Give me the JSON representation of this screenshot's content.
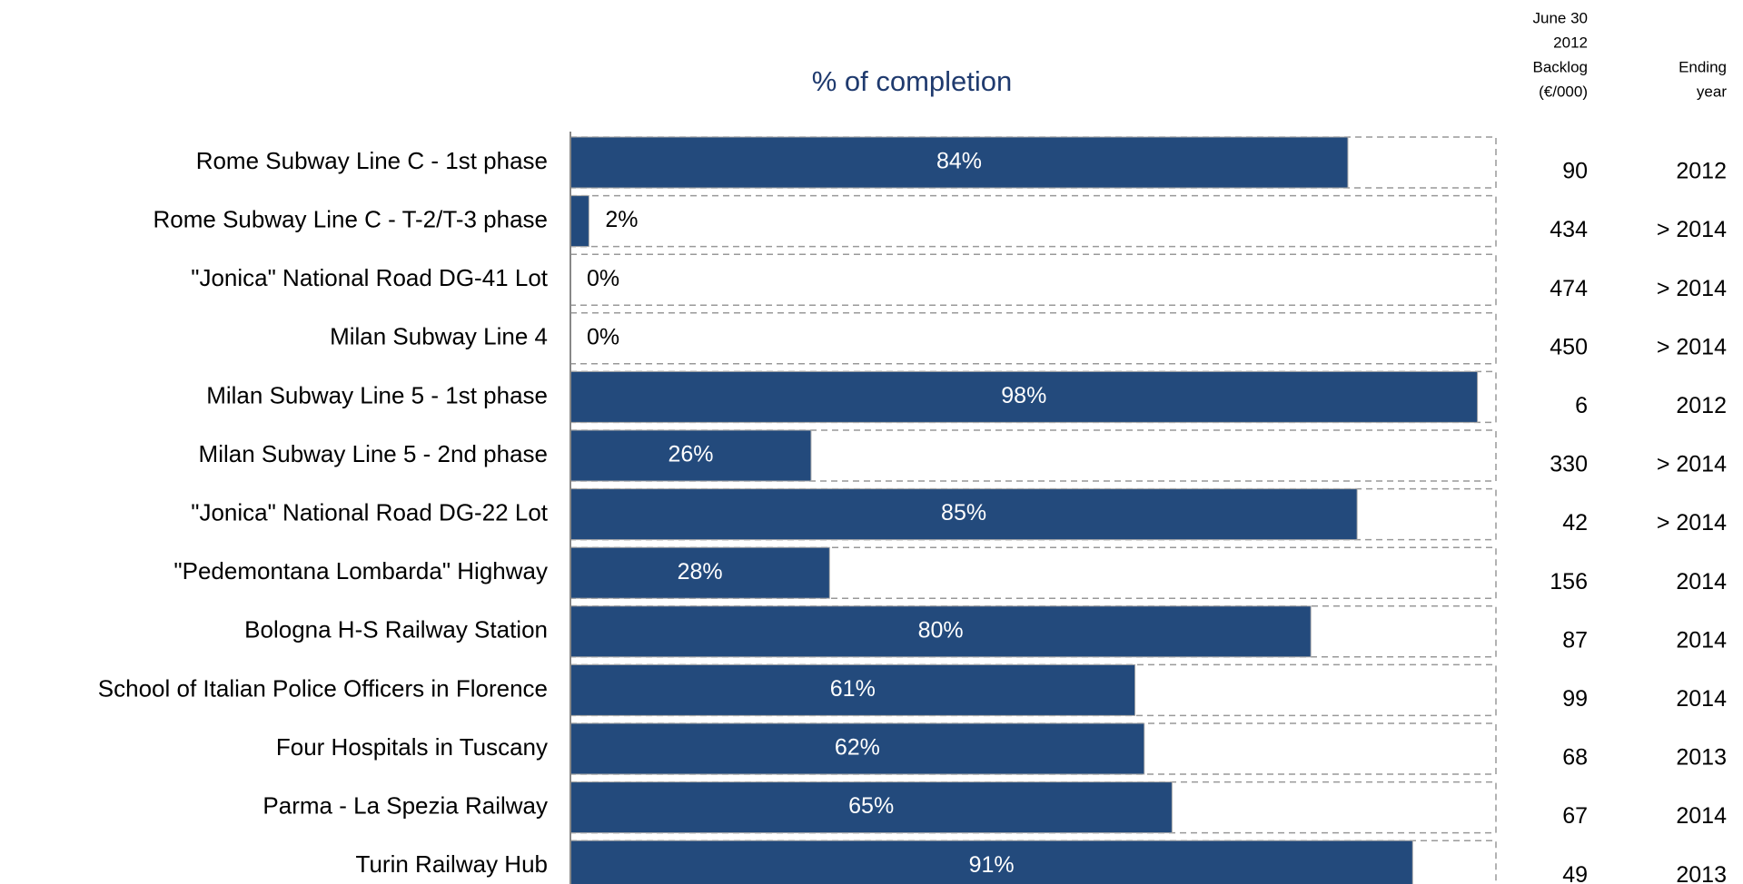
{
  "chart_data": {
    "type": "bar",
    "orientation": "horizontal",
    "title": "% of completion",
    "categories": [
      "Rome Subway Line C - 1st phase",
      "Rome Subway Line C - T-2/T-3 phase",
      "\"Jonica\" National Road DG-41 Lot",
      "Milan Subway Line 4",
      "Milan Subway Line 5 - 1st phase",
      "Milan Subway Line 5 - 2nd phase",
      "\"Jonica\" National Road DG-22 Lot",
      "\"Pedemontana Lombarda\" Highway",
      "Bologna H-S Railway Station",
      "School of Italian Police Officers in Florence",
      "Four Hospitals in Tuscany",
      "Parma - La Spezia Railway",
      "Turin Railway Hub"
    ],
    "values": [
      84,
      2,
      0,
      0,
      98,
      26,
      85,
      28,
      80,
      61,
      62,
      65,
      91
    ],
    "value_labels": [
      "84%",
      "2%",
      "0%",
      "0%",
      "98%",
      "26%",
      "85%",
      "28%",
      "80%",
      "61%",
      "62%",
      "65%",
      "91%"
    ],
    "color": "#234a7c",
    "xlim": [
      0,
      100
    ],
    "columns": [
      {
        "header": [
          "June 30",
          "2012",
          "Backlog",
          "(€/000)"
        ],
        "values": [
          90,
          434,
          474,
          450,
          6,
          330,
          42,
          156,
          87,
          99,
          68,
          67,
          49
        ]
      },
      {
        "header": [
          "Ending",
          "year"
        ],
        "values": [
          "2012",
          "> 2014",
          "> 2014",
          "> 2014",
          "2012",
          "> 2014",
          "> 2014",
          "2014",
          "2014",
          "2014",
          "2013",
          "2014",
          "2013"
        ]
      }
    ]
  }
}
